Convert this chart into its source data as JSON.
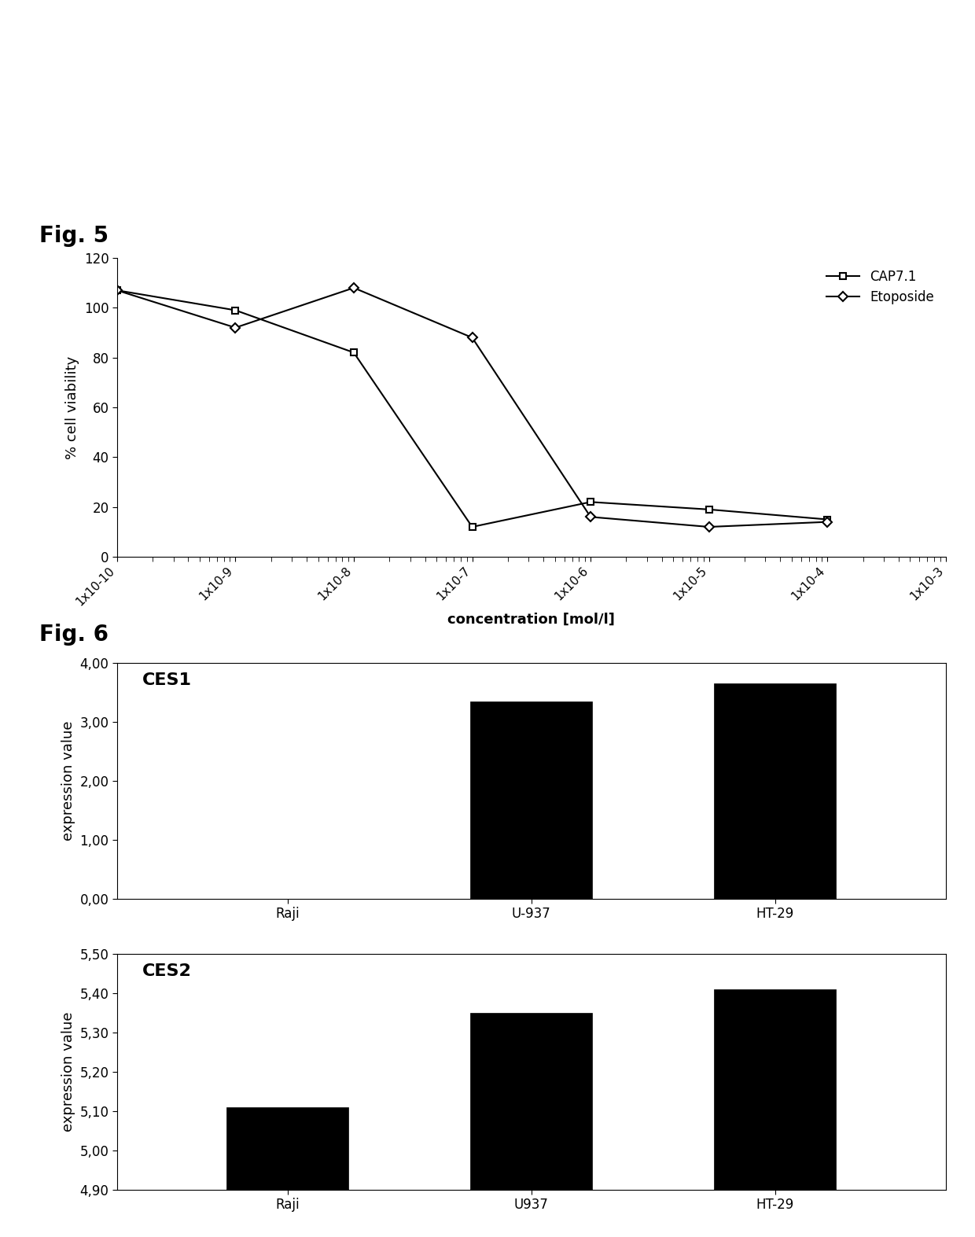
{
  "fig5": {
    "fig_label": "Fig. 5",
    "cap71_x": [
      1e-10,
      1e-09,
      1e-08,
      1e-07,
      1e-06,
      1e-05,
      0.0001
    ],
    "cap71_y": [
      107,
      99,
      82,
      12,
      22,
      19,
      15
    ],
    "etoposide_x": [
      1e-10,
      1e-09,
      1e-08,
      1e-07,
      1e-06,
      1e-05,
      0.0001
    ],
    "etoposide_y": [
      107,
      92,
      108,
      88,
      16,
      12,
      14
    ],
    "ylabel": "% cell viability",
    "xlabel": "concentration [mol/l]",
    "ylim": [
      0,
      120
    ],
    "yticks": [
      0,
      20,
      40,
      60,
      80,
      100,
      120
    ],
    "xtick_labels": [
      "1x10-10",
      "1x10-9",
      "1x10-8",
      "1x10-7",
      "1x10-6",
      "1x10-5",
      "1x10-4",
      "1x10-3"
    ],
    "legend_cap71": "CAP7.1",
    "legend_etoposide": "Etoposide",
    "line_color": "#000000"
  },
  "fig6_label": "Fig. 6",
  "fig6_ces1": {
    "label": "CES1",
    "categories": [
      "Raji",
      "U-937",
      "HT-29"
    ],
    "values": [
      0.0,
      3.35,
      3.65
    ],
    "ylabel": "expression value",
    "ylim": [
      0.0,
      4.0
    ],
    "yticks": [
      0.0,
      1.0,
      2.0,
      3.0,
      4.0
    ],
    "ytick_labels": [
      "0,00",
      "1,00",
      "2,00",
      "3,00",
      "4,00"
    ],
    "bar_color": "#000000"
  },
  "fig6_ces2": {
    "label": "CES2",
    "categories": [
      "Raji",
      "U937",
      "HT-29"
    ],
    "values": [
      5.11,
      5.35,
      5.41
    ],
    "ylabel": "expression value",
    "ylim": [
      4.9,
      5.5
    ],
    "yticks": [
      4.9,
      5.0,
      5.1,
      5.2,
      5.3,
      5.4,
      5.5
    ],
    "ytick_labels": [
      "4,90",
      "5,00",
      "5,10",
      "5,20",
      "5,30",
      "5,40",
      "5,50"
    ],
    "bar_color": "#000000"
  },
  "background_color": "#ffffff"
}
